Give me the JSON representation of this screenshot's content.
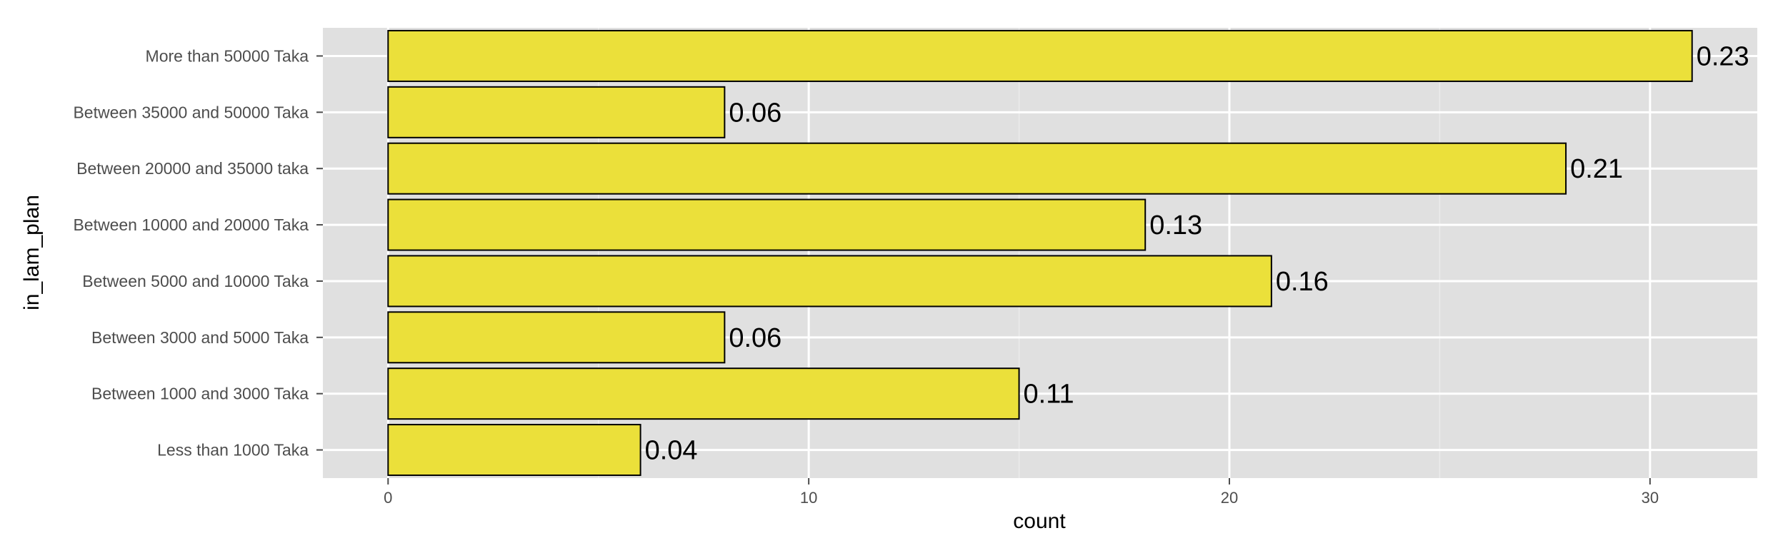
{
  "chart_data": {
    "type": "bar",
    "orientation": "horizontal",
    "xlabel": "count",
    "ylabel": "in_lam_plan",
    "categories": [
      "More than 50000 Taka",
      "Between 35000 and 50000 Taka",
      "Between 20000 and 35000 taka",
      "Between 10000 and 20000 Taka",
      "Between 5000 and 10000 Taka",
      "Between 3000 and 5000 Taka",
      "Between 1000 and 3000 Taka",
      "Less than 1000 Taka"
    ],
    "values": [
      31,
      8,
      28,
      18,
      21,
      8,
      15,
      6
    ],
    "labels": [
      "0.23",
      "0.06",
      "0.21",
      "0.13",
      "0.16",
      "0.06",
      "0.11",
      "0.04"
    ],
    "xticks": [
      0,
      10,
      20,
      30
    ],
    "xtick_labels": [
      "0",
      "10",
      "20",
      "30"
    ],
    "xlim": [
      -1.55,
      32.55
    ],
    "grid": true,
    "colors": {
      "bar_fill": "#ebe03a",
      "bar_stroke": "#000000",
      "panel_background": "#e0e0e0",
      "grid_major": "#ffffff",
      "grid_minor": "#ebebeb"
    }
  }
}
